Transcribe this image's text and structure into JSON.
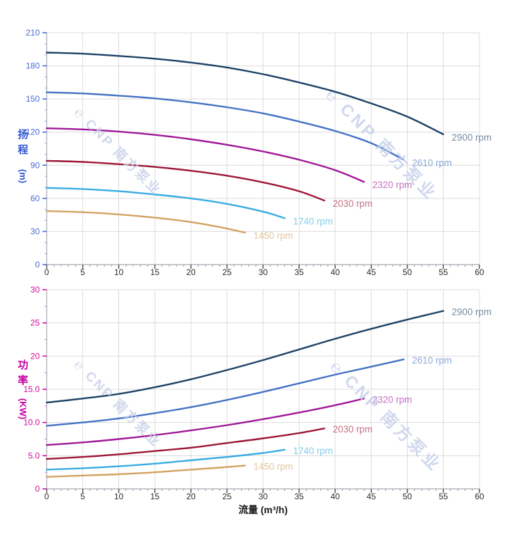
{
  "page": {
    "x_axis_title": "流量 (m³/h)",
    "head_axis_title_cn": "扬程",
    "head_axis_unit": "(m)",
    "power_axis_title_cn": "功率",
    "power_axis_unit": "(KW)"
  },
  "watermark": {
    "logo_glyph": "℮",
    "brand": "CNP 南方泵业",
    "color": "#c6cfe9"
  },
  "colors": {
    "grid": "#dcdcdc",
    "axis_line": "#b3b7bf",
    "x_tick_label": "#2b2b2b",
    "head_tick_label": "#4a6bd4",
    "head_axis_title": "#3056d0",
    "power_tick_label": "#cf0d9e",
    "power_axis_title": "#c400a2"
  },
  "chart_data": [
    {
      "type": "line",
      "name": "head-vs-flow",
      "title": "",
      "xlabel": "流量 (m³/h)",
      "ylabel": "扬程 (m)",
      "xlim": [
        0,
        60
      ],
      "ylim": [
        0,
        210
      ],
      "grid": true,
      "x_major_step": 5,
      "x_minor_step": 1,
      "y_major_step": 30,
      "y_minor_step": 10,
      "x_tick_labels": [
        "0",
        "5",
        "10",
        "15",
        "20",
        "25",
        "30",
        "35",
        "40",
        "45",
        "50",
        "55",
        "60"
      ],
      "y_tick_labels": [
        "0",
        "30",
        "60",
        "90",
        "120",
        "150",
        "180",
        "210"
      ],
      "tick_color": "#4a6bd4",
      "legend_position": "inline-at-curve-end",
      "series": [
        {
          "name": "2900 rpm",
          "rpm": 2900,
          "color": "#1d4266",
          "points": [
            [
              0,
              192
            ],
            [
              5,
              191
            ],
            [
              10,
              189
            ],
            [
              15,
              186.5
            ],
            [
              20,
              183
            ],
            [
              25,
              178.5
            ],
            [
              30,
              172.5
            ],
            [
              35,
              165
            ],
            [
              40,
              156.5
            ],
            [
              45,
              146
            ],
            [
              50,
              134
            ],
            [
              55,
              118
            ]
          ]
        },
        {
          "name": "2610 rpm",
          "rpm": 2610,
          "color": "#4472c4",
          "points": [
            [
              0,
              156
            ],
            [
              5,
              155
            ],
            [
              10,
              153
            ],
            [
              15,
              150.5
            ],
            [
              20,
              147
            ],
            [
              25,
              142.5
            ],
            [
              30,
              137
            ],
            [
              35,
              129.5
            ],
            [
              40,
              121
            ],
            [
              45,
              110
            ],
            [
              49.5,
              95
            ]
          ]
        },
        {
          "name": "2320 rpm",
          "rpm": 2320,
          "color": "#a01898",
          "points": [
            [
              0,
              123.5
            ],
            [
              5,
              122.5
            ],
            [
              10,
              120.5
            ],
            [
              15,
              117.5
            ],
            [
              20,
              113.5
            ],
            [
              25,
              108.5
            ],
            [
              30,
              102.5
            ],
            [
              35,
              95
            ],
            [
              40,
              85.5
            ],
            [
              44,
              75
            ]
          ]
        },
        {
          "name": "2030 rpm",
          "rpm": 2030,
          "color": "#9e1638",
          "points": [
            [
              0,
              94
            ],
            [
              5,
              93
            ],
            [
              10,
              91
            ],
            [
              15,
              88.5
            ],
            [
              20,
              85
            ],
            [
              25,
              80.5
            ],
            [
              30,
              74.5
            ],
            [
              35,
              66.5
            ],
            [
              38.5,
              58
            ]
          ]
        },
        {
          "name": "1740 rpm",
          "rpm": 1740,
          "color": "#38ade2",
          "points": [
            [
              0,
              69.5
            ],
            [
              5,
              68.5
            ],
            [
              10,
              66.5
            ],
            [
              15,
              63.5
            ],
            [
              20,
              60
            ],
            [
              25,
              55
            ],
            [
              30,
              48
            ],
            [
              33,
              42
            ]
          ]
        },
        {
          "name": "1450 rpm",
          "rpm": 1450,
          "color": "#d2a260",
          "points": [
            [
              0,
              48.5
            ],
            [
              5,
              47.5
            ],
            [
              10,
              45.5
            ],
            [
              15,
              42.5
            ],
            [
              20,
              38.5
            ],
            [
              24,
              34
            ],
            [
              27.5,
              29
            ]
          ]
        }
      ]
    },
    {
      "type": "line",
      "name": "power-vs-flow",
      "title": "",
      "xlabel": "流量 (m³/h)",
      "ylabel": "功率 (KW)",
      "xlim": [
        0,
        60
      ],
      "ylim": [
        0,
        30
      ],
      "grid": true,
      "x_major_step": 5,
      "x_minor_step": 1,
      "y_major_step": 5,
      "y_minor_step": 2.5,
      "x_tick_labels": [
        "0",
        "5",
        "10",
        "15",
        "20",
        "25",
        "30",
        "35",
        "40",
        "45",
        "50",
        "55",
        "60"
      ],
      "y_tick_labels": [
        "0",
        "5.0",
        "10.0",
        "15.0",
        "20",
        "25",
        "30"
      ],
      "tick_color": "#cf0d9e",
      "legend_position": "inline-at-curve-end",
      "series": [
        {
          "name": "2900 rpm",
          "rpm": 2900,
          "color": "#1d4266",
          "points": [
            [
              0,
              13
            ],
            [
              5,
              13.6
            ],
            [
              10,
              14.3
            ],
            [
              15,
              15.3
            ],
            [
              20,
              16.5
            ],
            [
              25,
              17.9
            ],
            [
              30,
              19.4
            ],
            [
              35,
              21
            ],
            [
              40,
              22.6
            ],
            [
              45,
              24.1
            ],
            [
              50,
              25.5
            ],
            [
              55,
              26.8
            ]
          ]
        },
        {
          "name": "2610 rpm",
          "rpm": 2610,
          "color": "#4472c4",
          "points": [
            [
              0,
              9.5
            ],
            [
              5,
              10
            ],
            [
              10,
              10.6
            ],
            [
              15,
              11.4
            ],
            [
              20,
              12.3
            ],
            [
              25,
              13.4
            ],
            [
              30,
              14.6
            ],
            [
              35,
              15.9
            ],
            [
              40,
              17.2
            ],
            [
              45,
              18.4
            ],
            [
              49.5,
              19.5
            ]
          ]
        },
        {
          "name": "2320 rpm",
          "rpm": 2320,
          "color": "#a01898",
          "points": [
            [
              0,
              6.6
            ],
            [
              5,
              7
            ],
            [
              10,
              7.5
            ],
            [
              15,
              8.1
            ],
            [
              20,
              8.8
            ],
            [
              25,
              9.6
            ],
            [
              30,
              10.5
            ],
            [
              35,
              11.5
            ],
            [
              40,
              12.6
            ],
            [
              44,
              13.6
            ]
          ]
        },
        {
          "name": "2030 rpm",
          "rpm": 2030,
          "color": "#9e1638",
          "points": [
            [
              0,
              4.5
            ],
            [
              5,
              4.8
            ],
            [
              10,
              5.2
            ],
            [
              15,
              5.7
            ],
            [
              20,
              6.2
            ],
            [
              25,
              6.9
            ],
            [
              30,
              7.6
            ],
            [
              35,
              8.4
            ],
            [
              38.5,
              9.1
            ]
          ]
        },
        {
          "name": "1740 rpm",
          "rpm": 1740,
          "color": "#38ade2",
          "points": [
            [
              0,
              2.9
            ],
            [
              5,
              3.1
            ],
            [
              10,
              3.4
            ],
            [
              15,
              3.8
            ],
            [
              20,
              4.3
            ],
            [
              25,
              4.8
            ],
            [
              30,
              5.4
            ],
            [
              33,
              5.9
            ]
          ]
        },
        {
          "name": "1450 rpm",
          "rpm": 1450,
          "color": "#d2a260",
          "points": [
            [
              0,
              1.8
            ],
            [
              5,
              2
            ],
            [
              10,
              2.2
            ],
            [
              15,
              2.5
            ],
            [
              20,
              2.9
            ],
            [
              24,
              3.2
            ],
            [
              27.5,
              3.5
            ]
          ]
        }
      ]
    }
  ]
}
